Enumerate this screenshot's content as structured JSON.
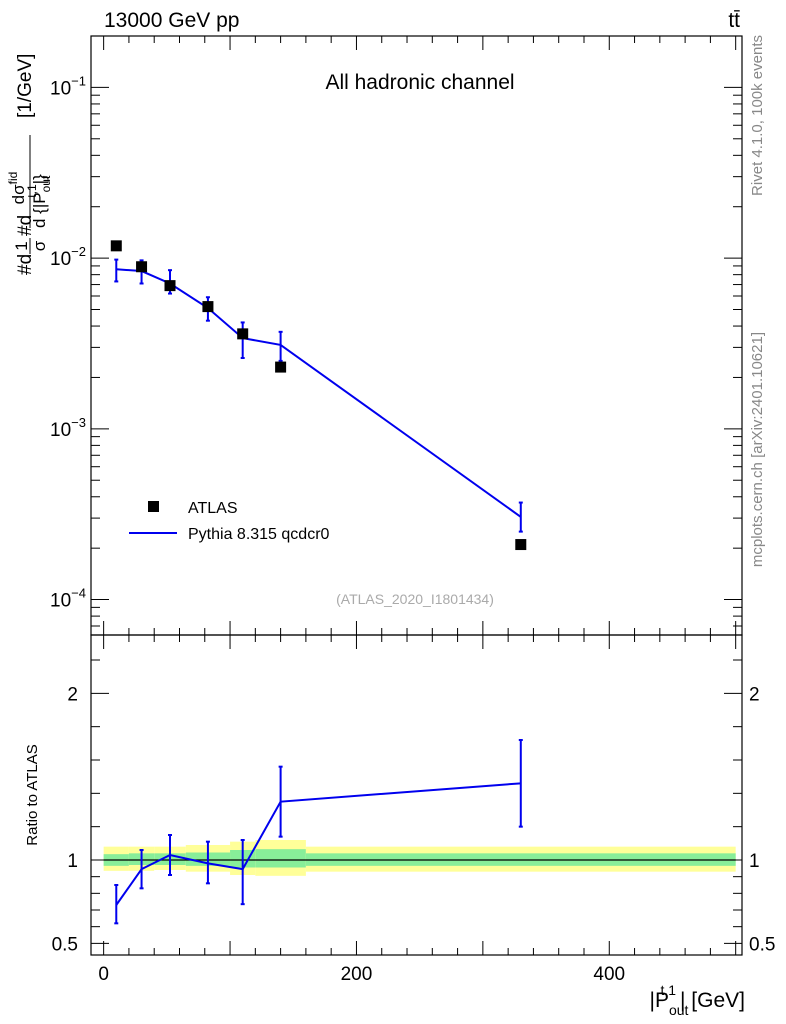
{
  "header": {
    "left": "13000 GeV pp",
    "right": "tt̄"
  },
  "side_text": {
    "rivet": "Rivet 4.1.0,  100k events",
    "source": "mcplots.cern.ch [arXiv:2401.10621]"
  },
  "analysis_tag": "(ATLAS_2020_I1801434)",
  "chart_data": [
    {
      "type": "scatter",
      "panel": "main",
      "title": "All hadronic channel",
      "ylabel": "#d1σ#dσ#d {|Pout t,1|} [1/GeV]",
      "ylabel_parts": {
        "prefix": "#d",
        "frac1_num": "1",
        "frac1_den": "σ",
        "mid": "#d",
        "frac2_num": "dσ",
        "frac2_num_sup": "fid",
        "frac2_den": "d {|P",
        "frac2_den_sub": "out",
        "frac2_den_sup": "t,1",
        "frac2_den_tail": "|}",
        "units": "[1/GeV]"
      },
      "yscale": "log",
      "ylim": [
        6.2e-05,
        0.2
      ],
      "xlim": [
        -10,
        505
      ],
      "y_ticks": [
        {
          "value": 0.1,
          "base": "10",
          "exp": "−1"
        },
        {
          "value": 0.01,
          "base": "10",
          "exp": "−2"
        },
        {
          "value": 0.001,
          "base": "10",
          "exp": "−3"
        },
        {
          "value": 0.0001,
          "base": "10",
          "exp": "−4"
        }
      ],
      "legend_position": "lower-left",
      "series": [
        {
          "name": "ATLAS",
          "kind": "markers",
          "color": "#000000",
          "x": [
            10,
            30,
            52.5,
            82.5,
            110,
            140,
            330
          ],
          "y": [
            0.0118,
            0.0089,
            0.0069,
            0.0052,
            0.0036,
            0.0023,
            0.00021
          ]
        },
        {
          "name": "Pythia 8.315 qcdcr0",
          "kind": "line",
          "color": "#0000ee",
          "x": [
            10,
            30,
            52.5,
            82.5,
            110,
            140,
            330
          ],
          "y": [
            0.0086,
            0.0084,
            0.0071,
            0.0051,
            0.0034,
            0.0031,
            0.000305
          ],
          "err_low": [
            0.0073,
            0.0071,
            0.0062,
            0.0043,
            0.0026,
            0.0025,
            0.00025
          ],
          "err_high": [
            0.0098,
            0.0097,
            0.0085,
            0.0059,
            0.0042,
            0.0037,
            0.00037
          ]
        }
      ]
    },
    {
      "type": "line",
      "panel": "ratio",
      "ylabel": "Ratio to ATLAS",
      "xlabel_parts": {
        "pre": "|P",
        "sub": "out",
        "sup": "t,1",
        "post": "| [GeV]"
      },
      "xlim": [
        -10,
        505
      ],
      "ylim": [
        0.43,
        2.35
      ],
      "x_ticks": [
        0,
        200,
        400
      ],
      "y_ticks": [
        0.5,
        1,
        2
      ],
      "bins": [
        [
          0,
          20
        ],
        [
          20,
          40
        ],
        [
          40,
          65
        ],
        [
          65,
          100
        ],
        [
          100,
          120
        ],
        [
          120,
          160
        ],
        [
          160,
          500
        ]
      ],
      "band_inner": [
        [
          0.965,
          1.035
        ],
        [
          0.97,
          1.04
        ],
        [
          0.97,
          1.04
        ],
        [
          0.965,
          1.045
        ],
        [
          0.955,
          1.06
        ],
        [
          0.955,
          1.065
        ],
        [
          0.965,
          1.04
        ]
      ],
      "band_outer": [
        [
          0.935,
          1.08
        ],
        [
          0.935,
          1.08
        ],
        [
          0.94,
          1.08
        ],
        [
          0.93,
          1.09
        ],
        [
          0.91,
          1.11
        ],
        [
          0.905,
          1.12
        ],
        [
          0.93,
          1.08
        ]
      ],
      "band_inner_color": "#88ee99",
      "band_outer_color": "#ffff99",
      "series": [
        {
          "name": "Pythia 8.315 qcdcr0",
          "color": "#0000ee",
          "x": [
            10,
            30,
            52.5,
            82.5,
            110,
            140,
            330
          ],
          "y": [
            0.73,
            0.945,
            1.03,
            0.98,
            0.945,
            1.35,
            1.46
          ],
          "err_low": [
            0.62,
            0.83,
            0.91,
            0.86,
            0.735,
            1.14,
            1.2
          ],
          "err_high": [
            0.85,
            1.06,
            1.15,
            1.11,
            1.12,
            1.56,
            1.72
          ]
        }
      ]
    }
  ]
}
